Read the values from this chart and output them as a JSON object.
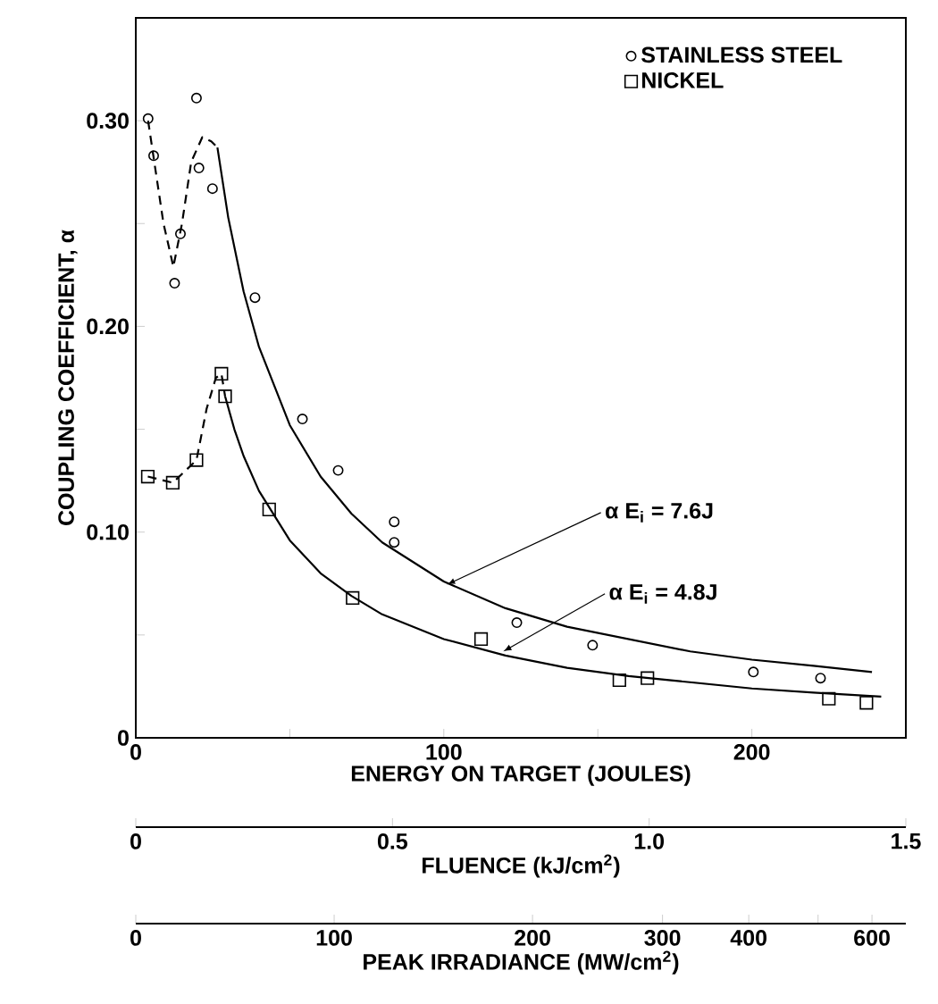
{
  "chart_data": {
    "type": "scatter",
    "xlabel": "ENERGY ON TARGET (JOULES)",
    "ylabel": "COUPLING COEFFICIENT, α",
    "x2label": "FLUENCE (kJ/cm$^{2}$)",
    "xlim": [
      0,
      250
    ],
    "ylim": [
      0,
      0.35
    ],
    "xticks": [
      0,
      {
        "value": 50,
        "label": null
      },
      100,
      {
        "value": 150,
        "label": null
      },
      200
    ],
    "yticks": [
      0,
      {
        "value": 0.05,
        "label": null
      },
      {
        "value": 0.1,
        "label": "0.10"
      },
      {
        "value": 0.15,
        "label": null
      },
      {
        "value": 0.2,
        "label": "0.20"
      },
      {
        "value": 0.25,
        "label": null
      },
      {
        "value": 0.3,
        "label": "0.30"
      }
    ],
    "x2lim": [
      0,
      1.5
    ],
    "x2ticks": [
      0,
      0.5,
      {
        "value": 1.0,
        "label": "1.0"
      },
      1.5
    ],
    "legend": "top right",
    "series": [
      {
        "name": "STAINLESS STEEL",
        "marker": "circle",
        "color": "#000000",
        "x": [
          4,
          5.8,
          12.6,
          14.5,
          19.7,
          20.5,
          24.9,
          38.7,
          54.1,
          65.7,
          83.9,
          83.9,
          123.7,
          148.3,
          200.5,
          222.3
        ],
        "values": [
          0.301,
          0.283,
          0.221,
          0.245,
          0.311,
          0.277,
          0.267,
          0.214,
          0.155,
          0.13,
          0.105,
          0.095,
          0.056,
          0.045,
          0.032,
          0.029
        ]
      },
      {
        "name": "NICKEL",
        "marker": "square",
        "color": "#000000",
        "x": [
          3.9,
          12,
          19.7,
          27.8,
          29,
          43.3,
          70.4,
          112.1,
          157,
          166.1,
          225,
          237.2
        ],
        "values": [
          0.127,
          0.124,
          0.135,
          0.177,
          0.166,
          0.111,
          0.068,
          0.048,
          0.028,
          0.029,
          0.019,
          0.017
        ]
      },
      {
        "type": "line",
        "line_style": "dashed",
        "color": "#000000",
        "x": [
          4,
          6,
          9,
          12.2,
          15,
          18,
          21.6,
          24.5,
          26.5
        ],
        "values": [
          0.3,
          0.28,
          0.25,
          0.229,
          0.25,
          0.28,
          0.292,
          0.29,
          0.287
        ]
      },
      {
        "type": "line",
        "line_style": "solid",
        "color": "#000000",
        "x": [
          26.5,
          30,
          35,
          40,
          50,
          60,
          70,
          80,
          100,
          120,
          140,
          160,
          180,
          200,
          220,
          239
        ],
        "values": [
          0.287,
          0.253,
          0.217,
          0.19,
          0.152,
          0.127,
          0.109,
          0.095,
          0.076,
          0.063,
          0.054,
          0.048,
          0.042,
          0.038,
          0.035,
          0.032
        ]
      },
      {
        "type": "line",
        "line_style": "dashed",
        "color": "#000000",
        "x": [
          3.9,
          12,
          19.7,
          23,
          26,
          27.8,
          29
        ],
        "values": [
          0.127,
          0.124,
          0.135,
          0.16,
          0.175,
          0.177,
          0.166
        ]
      },
      {
        "type": "line",
        "line_style": "solid",
        "color": "#000000",
        "x": [
          29,
          32,
          35,
          40,
          50,
          60,
          70,
          80,
          100,
          120,
          140,
          160,
          180,
          200,
          220,
          242
        ],
        "values": [
          0.166,
          0.15,
          0.137,
          0.12,
          0.096,
          0.08,
          0.069,
          0.06,
          0.048,
          0.04,
          0.034,
          0.03,
          0.027,
          0.024,
          0.022,
          0.02
        ]
      }
    ],
    "annotations": [
      {
        "text": "α E$_{i}$ = 7.6J",
        "x": 101,
        "y": 0.0745
      },
      {
        "text": "α E$_{i}$ = 4.8J",
        "x": 119.3,
        "y": 0.042
      },
      "PEAK IRRADIANCE (MW/cm$^{2}$)",
      "0",
      "100",
      "200",
      "300",
      "400",
      "600"
    ]
  }
}
